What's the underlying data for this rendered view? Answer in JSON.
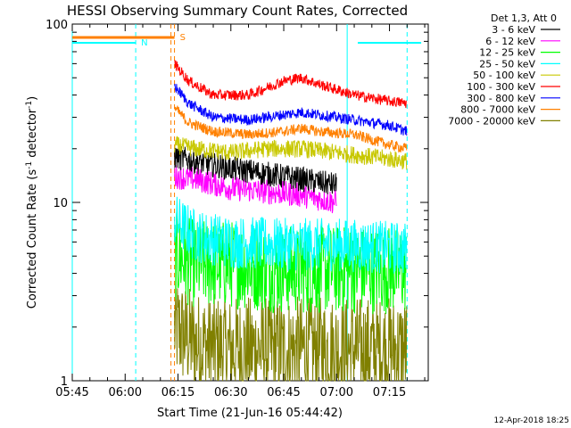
{
  "chart_data": {
    "type": "line",
    "title": "HESSI Observing Summary Count Rates, Corrected",
    "xlabel": "Start Time (21-Jun-16 05:44:42)",
    "ylabel": "Corrected Count Rate (s⁻¹ detector⁻¹)",
    "ylabel_parts": {
      "main": "Corrected Count Rate (s",
      "sup1": "-1",
      "mid": " detector",
      "sup2": "-1",
      "end": ")"
    },
    "x_tick_labels": [
      "05:45",
      "06:00",
      "06:15",
      "06:30",
      "06:45",
      "07:00",
      "07:15"
    ],
    "x_tick_minutes": [
      0,
      15,
      30,
      45,
      60,
      75,
      90
    ],
    "xlim_minutes": [
      0,
      101
    ],
    "y_scale": "log",
    "ylim": [
      1,
      100
    ],
    "y_tick_labels": [
      "1",
      "10",
      "100"
    ],
    "y_tick_values": [
      1,
      10,
      100
    ],
    "legend_header": "Det 1,3, Att 0",
    "legend_placement": "right",
    "flags": [
      {
        "label": "S",
        "color": "#ff8000",
        "start_min": 0,
        "end_min": 29
      },
      {
        "label": "N",
        "color": "#00ffff",
        "start_min": 0,
        "end_min": 18,
        "end2_min": 81,
        "end3_min": 99
      }
    ],
    "vertical_markers": [
      {
        "minute": 0,
        "color": "#00ffff",
        "style": "solid"
      },
      {
        "minute": 18,
        "color": "#00ffff",
        "style": "dashed"
      },
      {
        "minute": 28,
        "color": "#ff8000",
        "style": "dashed"
      },
      {
        "minute": 29,
        "color": "#ff8000",
        "style": "dashed"
      },
      {
        "minute": 78,
        "color": "#00ffff",
        "style": "solid"
      },
      {
        "minute": 95,
        "color": "#00ffff",
        "style": "dashed"
      }
    ],
    "series": [
      {
        "name": "3 - 6 keV",
        "color": "#000000",
        "x": [
          29,
          35,
          45,
          55,
          65,
          75
        ],
        "y": [
          18,
          17,
          15.5,
          14.5,
          13.5,
          12.5
        ],
        "noise": 0.07
      },
      {
        "name": "6 - 12 keV",
        "color": "#ff00ff",
        "x": [
          29,
          35,
          45,
          55,
          65,
          75
        ],
        "y": [
          14,
          13.5,
          12,
          11.5,
          11,
          10
        ],
        "noise": 0.07
      },
      {
        "name": "12 - 25 keV",
        "color": "#00ff00",
        "x": [
          29,
          35,
          45,
          60,
          75,
          95
        ],
        "y": [
          5,
          4.5,
          4.5,
          4.2,
          4.2,
          4.2
        ],
        "noise": 0.25
      },
      {
        "name": "25 - 50 keV",
        "color": "#00ffff",
        "x": [
          29,
          35,
          45,
          60,
          75,
          95
        ],
        "y": [
          8,
          6.5,
          6,
          5.8,
          5.8,
          5.5
        ],
        "noise": 0.15
      },
      {
        "name": "50 - 100 keV",
        "color": "#c8c800",
        "x": [
          29,
          35,
          45,
          55,
          65,
          75,
          85,
          95
        ],
        "y": [
          21,
          20,
          19,
          20,
          20,
          19,
          18,
          17
        ],
        "noise": 0.05
      },
      {
        "name": "100 - 300 keV",
        "color": "#ff0000",
        "x": [
          29,
          33,
          40,
          50,
          60,
          65,
          70,
          80,
          90,
          95
        ],
        "y": [
          60,
          48,
          40,
          40,
          48,
          50,
          46,
          40,
          37,
          36
        ],
        "noise": 0.03
      },
      {
        "name": "300 - 800 keV",
        "color": "#0000ff",
        "x": [
          29,
          33,
          40,
          50,
          60,
          65,
          70,
          80,
          90,
          95
        ],
        "y": [
          45,
          36,
          30,
          29,
          31,
          32,
          31,
          29,
          27,
          25
        ],
        "noise": 0.03
      },
      {
        "name": "800 - 7000 keV",
        "color": "#ff8000",
        "x": [
          29,
          33,
          40,
          50,
          60,
          65,
          70,
          80,
          90,
          95
        ],
        "y": [
          34,
          28,
          25,
          24,
          25,
          26,
          25,
          24,
          21,
          20
        ],
        "noise": 0.03
      },
      {
        "name": "7000 - 20000 keV",
        "color": "#808000",
        "x": [
          29,
          35,
          45,
          60,
          75,
          95
        ],
        "y": [
          2,
          1.6,
          1.5,
          1.5,
          1.5,
          1.5
        ],
        "noise": 0.3
      }
    ]
  },
  "footer": {
    "timestamp": "12-Apr-2018 18:25"
  }
}
